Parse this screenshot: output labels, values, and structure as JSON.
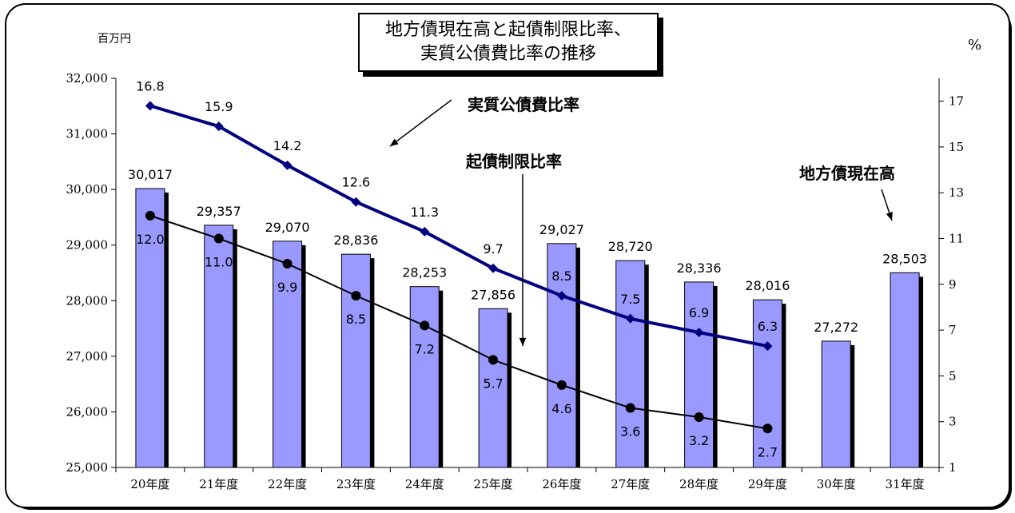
{
  "title": {
    "line1": "地方債現在高と起債制限比率、",
    "line2": "実質公債費比率の推移"
  },
  "left_unit": "百万円",
  "right_unit": "%",
  "callouts": {
    "jisshitsu": "実質公債費比率",
    "kisai": "起債制限比率",
    "chihousai": "地方債現在高"
  },
  "colors": {
    "bar": "#9999ff",
    "jisshitsu_line": "#000080",
    "kisai_line": "#000000"
  },
  "chart_data": {
    "type": "bar",
    "categories": [
      "20年度",
      "21年度",
      "22年度",
      "23年度",
      "24年度",
      "25年度",
      "26年度",
      "27年度",
      "28年度",
      "29年度",
      "30年度",
      "31年度"
    ],
    "y_left": {
      "min": 25000,
      "max": 32000,
      "ticks": [
        "25,000",
        "26,000",
        "27,000",
        "28,000",
        "29,000",
        "30,000",
        "31,000",
        "32,000"
      ]
    },
    "y_right": {
      "min": 1,
      "max": 18,
      "ticks": [
        "1",
        "3",
        "5",
        "7",
        "9",
        "11",
        "13",
        "15",
        "17"
      ]
    },
    "series": [
      {
        "name": "地方債現在高",
        "type": "bar",
        "axis": "left",
        "values": [
          30017,
          29357,
          29070,
          28836,
          28253,
          27856,
          29027,
          28720,
          28336,
          28016,
          27272,
          28503
        ],
        "labels": [
          "30,017",
          "29,357",
          "29,070",
          "28,836",
          "28,253",
          "27,856",
          "29,027",
          "28,720",
          "28,336",
          "28,016",
          "27,272",
          "28,503"
        ]
      },
      {
        "name": "実質公債費比率",
        "type": "line",
        "axis": "right",
        "values": [
          16.8,
          15.9,
          14.2,
          12.6,
          11.3,
          9.7,
          8.5,
          7.5,
          6.9,
          6.3,
          null,
          null
        ],
        "labels": [
          "16.8",
          "15.9",
          "14.2",
          "12.6",
          "11.3",
          "9.7",
          "8.5",
          "7.5",
          "6.9",
          "6.3",
          "",
          ""
        ]
      },
      {
        "name": "起債制限比率",
        "type": "line",
        "axis": "right",
        "values": [
          12.0,
          11.0,
          9.9,
          8.5,
          7.2,
          5.7,
          4.6,
          3.6,
          3.2,
          2.7,
          null,
          null
        ],
        "labels": [
          "12.0",
          "11.0",
          "9.9",
          "8.5",
          "7.2",
          "5.7",
          "4.6",
          "3.6",
          "3.2",
          "2.7",
          "",
          ""
        ]
      }
    ]
  }
}
